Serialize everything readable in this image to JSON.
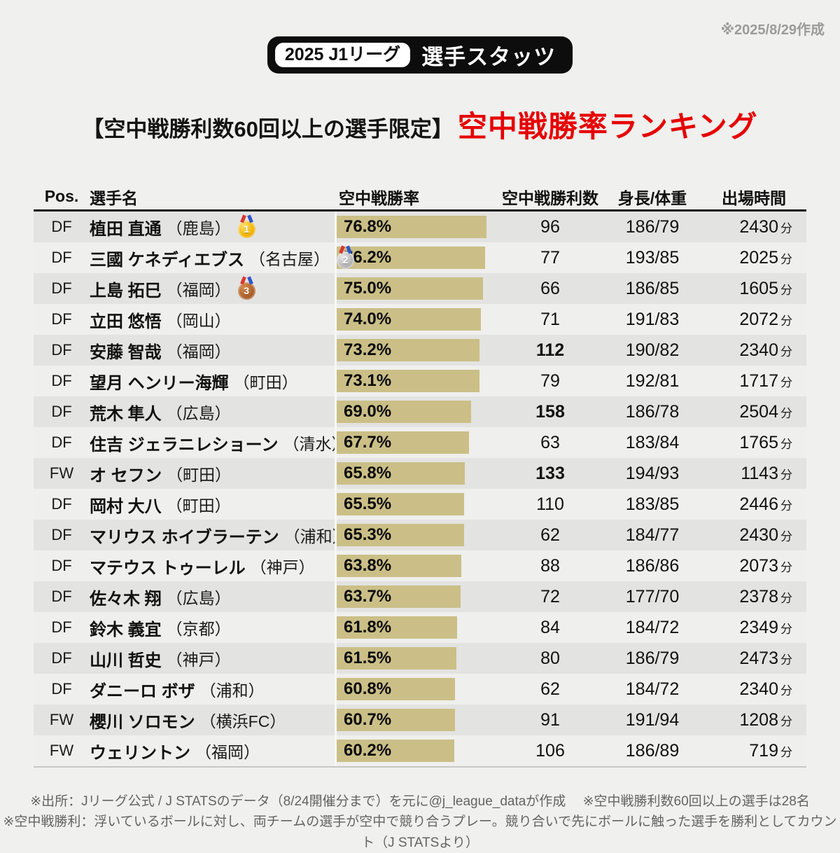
{
  "meta": {
    "made_date": "※2025/8/29作成"
  },
  "badge": {
    "season": "2025 J1リーグ",
    "category": "選手スタッツ"
  },
  "title": {
    "condition": "【空中戦勝利数60回以上の選手限定】",
    "ranking": "空中戦勝率ランキング",
    "ranking_color": "#e60000"
  },
  "colors": {
    "page_bg": "#f0f0ee",
    "row_odd_bg": "#e3e3e1",
    "row_even_bg": "#efefed",
    "bar": "#cbbf87",
    "badge_bg": "#0d0d0d",
    "accent_red": "#e60000",
    "footnote_gray": "#636363"
  },
  "table": {
    "headers": {
      "pos": "Pos.",
      "name": "選手名",
      "rate": "空中戦勝率",
      "wins": "空中戦勝利数",
      "height_weight": "身長/体重",
      "time": "出場時間"
    },
    "minutes_unit": "分",
    "rows": [
      {
        "pos": "DF",
        "name": "植田 直通",
        "team": "（鹿島）",
        "medal": "gold",
        "medal_number": "1",
        "rate_label": "76.8%",
        "rate_value": 76.8,
        "wins": "96",
        "wins_bold": false,
        "height_weight": "186/79",
        "minutes": "2430"
      },
      {
        "pos": "DF",
        "name": "三國 ケネディエブス",
        "team": "（名古屋）",
        "medal": "silver",
        "medal_number": "2",
        "rate_label": "76.2%",
        "rate_value": 76.2,
        "wins": "77",
        "wins_bold": false,
        "height_weight": "193/85",
        "minutes": "2025"
      },
      {
        "pos": "DF",
        "name": "上島 拓巳",
        "team": "（福岡）",
        "medal": "bronze",
        "medal_number": "3",
        "rate_label": "75.0%",
        "rate_value": 75.0,
        "wins": "66",
        "wins_bold": false,
        "height_weight": "186/85",
        "minutes": "1605"
      },
      {
        "pos": "DF",
        "name": "立田 悠悟",
        "team": "（岡山）",
        "medal": null,
        "medal_number": "",
        "rate_label": "74.0%",
        "rate_value": 74.0,
        "wins": "71",
        "wins_bold": false,
        "height_weight": "191/83",
        "minutes": "2072"
      },
      {
        "pos": "DF",
        "name": "安藤 智哉",
        "team": "（福岡）",
        "medal": null,
        "medal_number": "",
        "rate_label": "73.2%",
        "rate_value": 73.2,
        "wins": "112",
        "wins_bold": true,
        "height_weight": "190/82",
        "minutes": "2340"
      },
      {
        "pos": "DF",
        "name": "望月 ヘンリー海輝",
        "team": "（町田）",
        "medal": null,
        "medal_number": "",
        "rate_label": "73.1%",
        "rate_value": 73.1,
        "wins": "79",
        "wins_bold": false,
        "height_weight": "192/81",
        "minutes": "1717"
      },
      {
        "pos": "DF",
        "name": "荒木 隼人",
        "team": "（広島）",
        "medal": null,
        "medal_number": "",
        "rate_label": "69.0%",
        "rate_value": 69.0,
        "wins": "158",
        "wins_bold": true,
        "height_weight": "186/78",
        "minutes": "2504"
      },
      {
        "pos": "DF",
        "name": "住吉 ジェラニレショーン",
        "team": "（清水）",
        "medal": null,
        "medal_number": "",
        "rate_label": "67.7%",
        "rate_value": 67.7,
        "wins": "63",
        "wins_bold": false,
        "height_weight": "183/84",
        "minutes": "1765"
      },
      {
        "pos": "FW",
        "name": "オ セフン",
        "team": "（町田）",
        "medal": null,
        "medal_number": "",
        "rate_label": "65.8%",
        "rate_value": 65.8,
        "wins": "133",
        "wins_bold": true,
        "height_weight": "194/93",
        "minutes": "1143"
      },
      {
        "pos": "DF",
        "name": "岡村 大八",
        "team": "（町田）",
        "medal": null,
        "medal_number": "",
        "rate_label": "65.5%",
        "rate_value": 65.5,
        "wins": "110",
        "wins_bold": false,
        "height_weight": "183/85",
        "minutes": "2446"
      },
      {
        "pos": "DF",
        "name": "マリウス ホイブラーテン",
        "team": "（浦和）",
        "medal": null,
        "medal_number": "",
        "rate_label": "65.3%",
        "rate_value": 65.3,
        "wins": "62",
        "wins_bold": false,
        "height_weight": "184/77",
        "minutes": "2430"
      },
      {
        "pos": "DF",
        "name": "マテウス トゥーレル",
        "team": "（神戸）",
        "medal": null,
        "medal_number": "",
        "rate_label": "63.8%",
        "rate_value": 63.8,
        "wins": "88",
        "wins_bold": false,
        "height_weight": "186/86",
        "minutes": "2073"
      },
      {
        "pos": "DF",
        "name": "佐々木 翔",
        "team": "（広島）",
        "medal": null,
        "medal_number": "",
        "rate_label": "63.7%",
        "rate_value": 63.7,
        "wins": "72",
        "wins_bold": false,
        "height_weight": "177/70",
        "minutes": "2378"
      },
      {
        "pos": "DF",
        "name": "鈴木 義宜",
        "team": "（京都）",
        "medal": null,
        "medal_number": "",
        "rate_label": "61.8%",
        "rate_value": 61.8,
        "wins": "84",
        "wins_bold": false,
        "height_weight": "184/72",
        "minutes": "2349"
      },
      {
        "pos": "DF",
        "name": "山川 哲史",
        "team": "（神戸）",
        "medal": null,
        "medal_number": "",
        "rate_label": "61.5%",
        "rate_value": 61.5,
        "wins": "80",
        "wins_bold": false,
        "height_weight": "186/79",
        "minutes": "2473"
      },
      {
        "pos": "DF",
        "name": "ダニーロ ボザ",
        "team": "（浦和）",
        "medal": null,
        "medal_number": "",
        "rate_label": "60.8%",
        "rate_value": 60.8,
        "wins": "62",
        "wins_bold": false,
        "height_weight": "184/72",
        "minutes": "2340"
      },
      {
        "pos": "FW",
        "name": "櫻川 ソロモン",
        "team": "（横浜FC）",
        "medal": null,
        "medal_number": "",
        "rate_label": "60.7%",
        "rate_value": 60.7,
        "wins": "91",
        "wins_bold": false,
        "height_weight": "191/94",
        "minutes": "1208"
      },
      {
        "pos": "FW",
        "name": "ウェリントン",
        "team": "（福岡）",
        "medal": null,
        "medal_number": "",
        "rate_label": "60.2%",
        "rate_value": 60.2,
        "wins": "106",
        "wins_bold": false,
        "height_weight": "186/89",
        "minutes": "719"
      }
    ]
  },
  "footnotes": {
    "line1": "※出所：Jリーグ公式 / J STATSのデータ（8/24開催分まで）を元に@j_league_dataが作成　 ※空中戦勝利数60回以上の選手は28名",
    "line2": "※空中戦勝利：浮いているボールに対し、両チームの選手が空中で競り合うプレー。競り合いで先にボールに触った選手を勝利としてカウント（J STATSより）"
  },
  "chart_data": {
    "type": "bar",
    "orientation": "horizontal",
    "title": "空中戦勝率ランキング（空中戦勝利数60回以上の選手限定）",
    "categories": [
      "植田 直通",
      "三國 ケネディエブス",
      "上島 拓巳",
      "立田 悠悟",
      "安藤 智哉",
      "望月 ヘンリー海輝",
      "荒木 隼人",
      "住吉 ジェラニレショーン",
      "オ セフン",
      "岡村 大八",
      "マリウス ホイブラーテン",
      "マテウス トゥーレル",
      "佐々木 翔",
      "鈴木 義宜",
      "山川 哲史",
      "ダニーロ ボザ",
      "櫻川 ソロモン",
      "ウェリントン"
    ],
    "series": [
      {
        "name": "空中戦勝率(%)",
        "values": [
          76.8,
          76.2,
          75.0,
          74.0,
          73.2,
          73.1,
          69.0,
          67.7,
          65.8,
          65.5,
          65.3,
          63.8,
          63.7,
          61.8,
          61.5,
          60.8,
          60.7,
          60.2
        ]
      },
      {
        "name": "空中戦勝利数",
        "values": [
          96,
          77,
          66,
          71,
          112,
          79,
          158,
          63,
          133,
          110,
          62,
          88,
          72,
          84,
          80,
          62,
          91,
          106
        ]
      },
      {
        "name": "出場時間(分)",
        "values": [
          2430,
          2025,
          1605,
          2072,
          2340,
          1717,
          2504,
          1765,
          1143,
          2446,
          2430,
          2073,
          2378,
          2349,
          2473,
          2340,
          1208,
          719
        ]
      }
    ],
    "bar_color": "#cbbf87",
    "xlim": [
      0,
      80
    ],
    "value_label_position": "inside-start"
  }
}
